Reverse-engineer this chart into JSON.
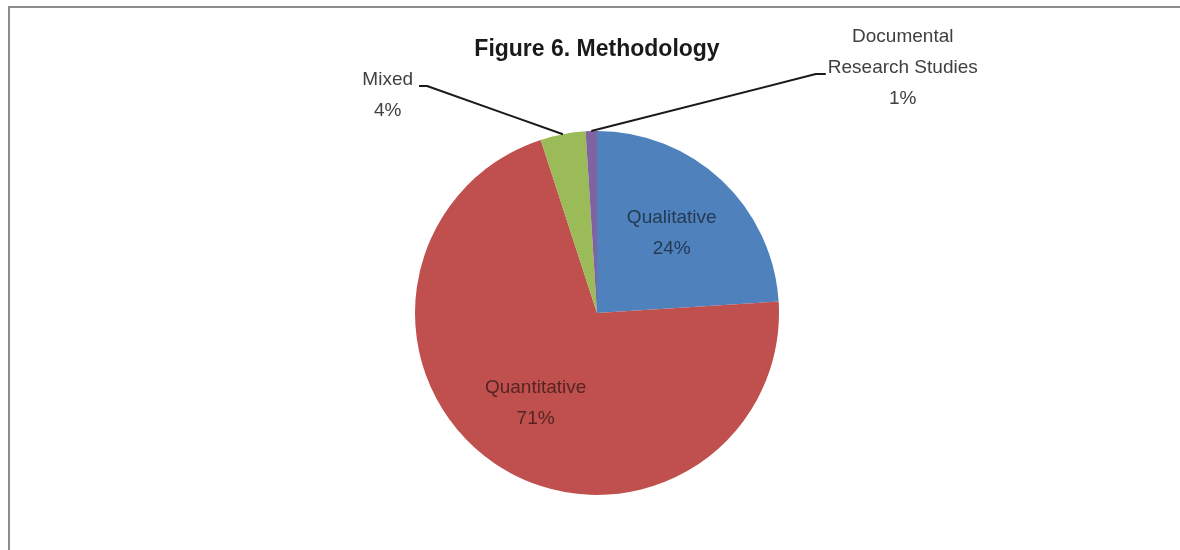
{
  "chart_data": {
    "type": "pie",
    "title": "Figure 6. Methodology",
    "categories": [
      "Qualitative",
      "Quantitative",
      "Mixed",
      "Documental Research Studies"
    ],
    "values": [
      24,
      71,
      4,
      1
    ],
    "colors": [
      "#4f81bd",
      "#c0504d",
      "#9bbb59",
      "#8064a2"
    ],
    "value_labels": [
      "24%",
      "71%",
      "4%",
      "1%"
    ]
  }
}
